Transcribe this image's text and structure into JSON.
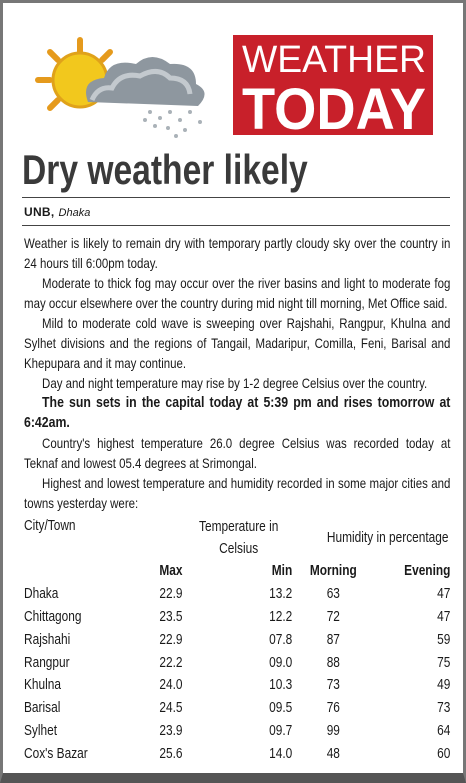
{
  "header": {
    "logo_line1": "WEATHER",
    "logo_line2": "TODAY"
  },
  "headline": "Dry weather likely",
  "byline": {
    "agency": "UNB,",
    "location": "Dhaka"
  },
  "paragraphs": [
    "Weather is likely to remain dry with temporary partly cloudy sky over the country in 24 hours till 6:00pm today.",
    "Moderate to thick fog may occur over the river basins and light to moderate fog may occur elsewhere over the country during mid night till morning, Met Office said.",
    "Mild to moderate cold wave is sweeping over Rajshahi, Rangpur, Khulna and Sylhet divisions and the regions of Tangail, Madaripur, Comilla, Feni, Barisal and Khepupara and it may continue.",
    "Day and night temperature may rise by 1-2 degree Celsius over the country.",
    "The sun sets in the capital today at 5:39 pm and rises tomorrow at 6:42am.",
    "Country's highest temperature 26.0 degree Celsius was recorded today at Teknaf and lowest 05.4 degrees at Srimongal.",
    "Highest and lowest temperature and humidity recorded in some major cities and towns yesterday were:"
  ],
  "table": {
    "group_headers": [
      "City/Town",
      "Temperature in Celsius",
      "Humidity in percentage"
    ],
    "columns": [
      "Max",
      "Min",
      "Morning",
      "Evening"
    ],
    "rows": [
      [
        "Dhaka",
        "22.9",
        "13.2",
        "63",
        "47"
      ],
      [
        "Chittagong",
        "23.5",
        "12.2",
        "72",
        "47"
      ],
      [
        "Rajshahi",
        "22.9",
        "07.8",
        "87",
        "59"
      ],
      [
        "Rangpur",
        "22.2",
        "09.0",
        "88",
        "75"
      ],
      [
        "Khulna",
        "24.0",
        "10.3",
        "73",
        "49"
      ],
      [
        "Barisal",
        "24.5",
        "09.5",
        "76",
        "73"
      ],
      [
        "Sylhet",
        "23.9",
        "09.7",
        "99",
        "64"
      ],
      [
        "Cox's Bazar",
        "25.6",
        "14.0",
        "48",
        "60"
      ]
    ]
  }
}
